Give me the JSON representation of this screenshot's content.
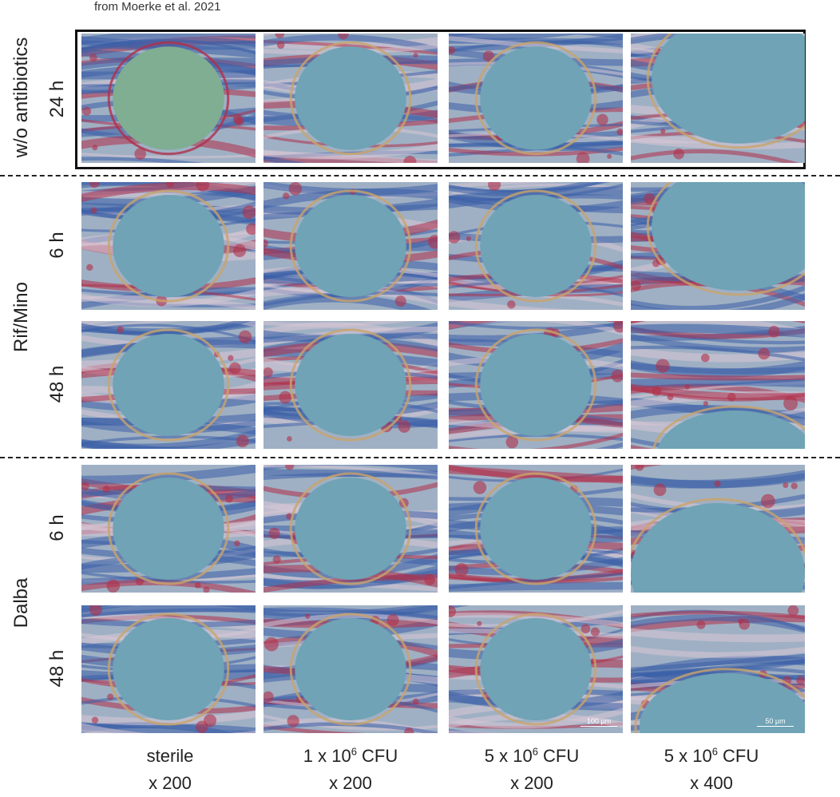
{
  "source": "from Moerke et al. 2021",
  "groups": [
    {
      "label": "w/o antibiotics",
      "times": [
        "24 h"
      ]
    },
    {
      "label": "Rif/Mino",
      "times": [
        "6 h",
        "48 h"
      ]
    },
    {
      "label": "Dalba",
      "times": [
        "6 h",
        "48 h"
      ]
    }
  ],
  "columns": [
    {
      "line1": "sterile",
      "line1_sup": "",
      "line1_tail": "",
      "line2": "x 200"
    },
    {
      "line1": "1 x 10",
      "line1_sup": "6",
      "line1_tail": " CFU",
      "line2": "x 200"
    },
    {
      "line1": "5 x 10",
      "line1_sup": "6",
      "line1_tail": " CFU",
      "line2": "x 200"
    },
    {
      "line1": "5 x 10",
      "line1_sup": "6",
      "line1_tail": " CFU",
      "line2": "x 400"
    }
  ],
  "scale_bars": [
    "100 µm",
    "50 µm"
  ],
  "colors": {
    "tissue_blue": "#3a5fa8",
    "tissue_red": "#b0304a",
    "lumen": "#6fa3b5",
    "frame": "#111111"
  }
}
